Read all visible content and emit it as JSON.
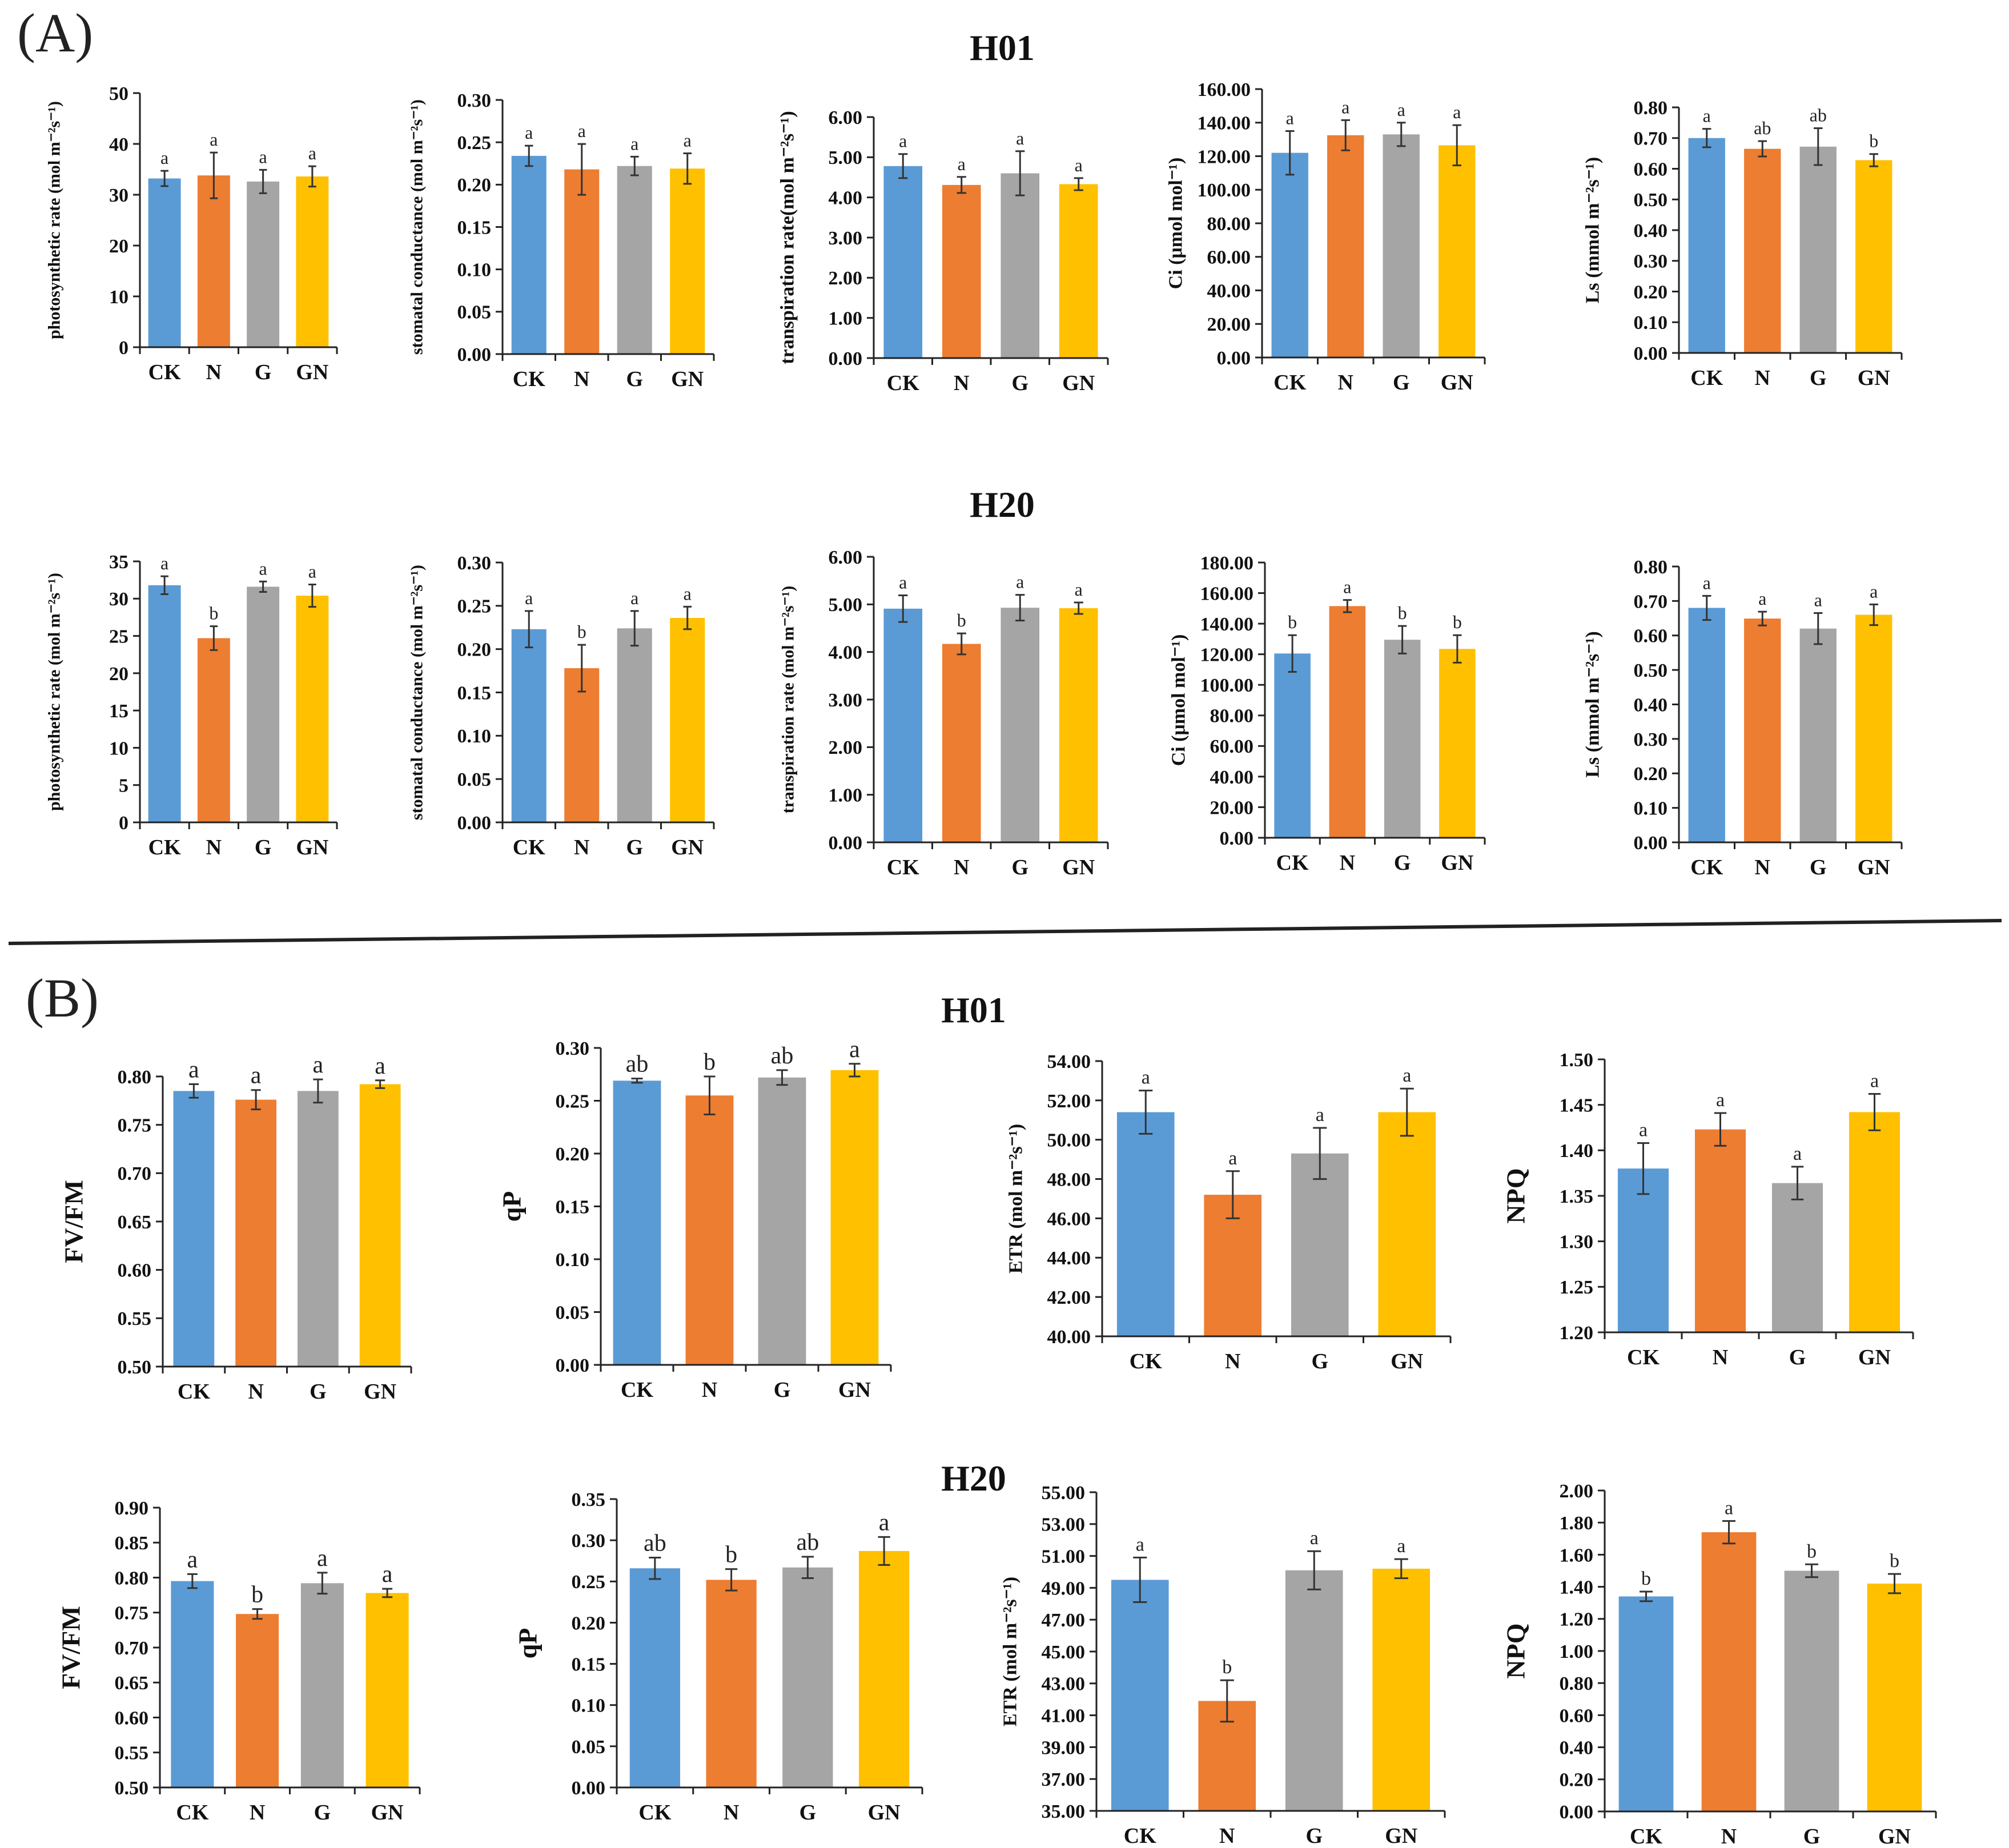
{
  "figure": {
    "panels": [
      {
        "label": "(A)"
      },
      {
        "label": "(B)"
      }
    ],
    "row_titles": [
      "H01",
      "H20",
      "H01",
      "H20"
    ],
    "colors": {
      "CK": "#5B9BD5",
      "N": "#ED7D31",
      "G": "#A5A5A5",
      "GN": "#FFC000",
      "axis": "#222222",
      "divider": "#222222"
    }
  },
  "chart_data": [
    {
      "type": "bar",
      "row": "A-H01",
      "categories": [
        "CK",
        "N",
        "G",
        "GN"
      ],
      "ylabel": "photosynthetic rate  (mol m⁻²s⁻¹)",
      "ylim": [
        0,
        50
      ],
      "yticks": [
        "0",
        "10",
        "20",
        "30",
        "40",
        "50"
      ],
      "values": [
        33.2,
        33.8,
        32.6,
        33.6
      ],
      "errors": [
        1.5,
        4.5,
        2.3,
        2.0
      ],
      "letters": [
        "a",
        "a",
        "a",
        "a"
      ]
    },
    {
      "type": "bar",
      "row": "A-H01",
      "categories": [
        "CK",
        "N",
        "G",
        "GN"
      ],
      "ylabel": "stomatal conductance  (mol m⁻²s⁻¹)",
      "ylim": [
        0,
        0.3
      ],
      "yticks": [
        "0.00",
        "0.05",
        "0.10",
        "0.15",
        "0.20",
        "0.25",
        "0.30"
      ],
      "values": [
        0.234,
        0.218,
        0.222,
        0.219
      ],
      "errors": [
        0.012,
        0.03,
        0.011,
        0.018
      ],
      "letters": [
        "a",
        "a",
        "a",
        "a"
      ]
    },
    {
      "type": "bar",
      "row": "A-H01",
      "categories": [
        "CK",
        "N",
        "G",
        "GN"
      ],
      "ylabel": "transpiration rate(mol m⁻²s⁻¹)",
      "ylim": [
        0,
        6
      ],
      "yticks": [
        "0.00",
        "1.00",
        "2.00",
        "3.00",
        "4.00",
        "5.00",
        "6.00"
      ],
      "values": [
        4.78,
        4.31,
        4.6,
        4.33
      ],
      "errors": [
        0.3,
        0.2,
        0.55,
        0.15
      ],
      "letters": [
        "a",
        "a",
        "a",
        "a"
      ]
    },
    {
      "type": "bar",
      "row": "A-H01",
      "categories": [
        "CK",
        "N",
        "G",
        "GN"
      ],
      "ylabel": "Ci (μmol mol⁻¹)",
      "ylim": [
        0,
        160
      ],
      "yticks": [
        "0.00",
        "20.00",
        "40.00",
        "60.00",
        "80.00",
        "100.00",
        "120.00",
        "140.00",
        "160.00"
      ],
      "values": [
        122,
        132.5,
        133,
        126.5
      ],
      "errors": [
        13,
        9,
        7,
        12
      ],
      "letters": [
        "a",
        "a",
        "a",
        "a"
      ]
    },
    {
      "type": "bar",
      "row": "A-H01",
      "categories": [
        "CK",
        "N",
        "G",
        "GN"
      ],
      "ylabel": "Ls (mmol m⁻²s⁻¹)",
      "ylim": [
        0,
        0.8
      ],
      "yticks": [
        "0.00",
        "0.10",
        "0.20",
        "0.30",
        "0.40",
        "0.50",
        "0.60",
        "0.70",
        "0.80"
      ],
      "values": [
        0.7,
        0.665,
        0.672,
        0.628
      ],
      "errors": [
        0.03,
        0.025,
        0.06,
        0.02
      ],
      "letters": [
        "a",
        "ab",
        "ab",
        "b"
      ]
    },
    {
      "type": "bar",
      "row": "A-H20",
      "categories": [
        "CK",
        "N",
        "G",
        "GN"
      ],
      "ylabel": "photosynthetic rate  (mol m⁻²s⁻¹)",
      "ylim": [
        0,
        35
      ],
      "yticks": [
        "0",
        "5",
        "10",
        "15",
        "20",
        "25",
        "30",
        "35"
      ],
      "values": [
        31.8,
        24.7,
        31.6,
        30.4
      ],
      "errors": [
        1.2,
        1.6,
        0.7,
        1.5
      ],
      "letters": [
        "a",
        "b",
        "a",
        "a"
      ]
    },
    {
      "type": "bar",
      "row": "A-H20",
      "categories": [
        "CK",
        "N",
        "G",
        "GN"
      ],
      "ylabel": "stomatal conductance  (mol m⁻²s⁻¹)",
      "ylim": [
        0,
        0.3
      ],
      "yticks": [
        "0.00",
        "0.05",
        "0.10",
        "0.15",
        "0.20",
        "0.25",
        "0.30"
      ],
      "values": [
        0.223,
        0.178,
        0.224,
        0.236
      ],
      "errors": [
        0.021,
        0.027,
        0.02,
        0.013
      ],
      "letters": [
        "a",
        "b",
        "a",
        "a"
      ]
    },
    {
      "type": "bar",
      "row": "A-H20",
      "categories": [
        "CK",
        "N",
        "G",
        "GN"
      ],
      "ylabel": "transpiration rate (mol m⁻²s⁻¹)",
      "ylim": [
        0,
        6
      ],
      "yticks": [
        "0.00",
        "1.00",
        "2.00",
        "3.00",
        "4.00",
        "5.00",
        "6.00"
      ],
      "values": [
        4.91,
        4.17,
        4.93,
        4.92
      ],
      "errors": [
        0.28,
        0.22,
        0.27,
        0.12
      ],
      "letters": [
        "a",
        "b",
        "a",
        "a"
      ]
    },
    {
      "type": "bar",
      "row": "A-H20",
      "categories": [
        "CK",
        "N",
        "G",
        "GN"
      ],
      "ylabel": "Ci (μmol mol⁻¹)",
      "ylim": [
        0,
        180
      ],
      "yticks": [
        "0.00",
        "20.00",
        "40.00",
        "60.00",
        "80.00",
        "100.00",
        "120.00",
        "140.00",
        "160.00",
        "180.00"
      ],
      "values": [
        120.5,
        151.5,
        129.5,
        123.5
      ],
      "errors": [
        12,
        4,
        9,
        9
      ],
      "letters": [
        "b",
        "a",
        "b",
        "b"
      ]
    },
    {
      "type": "bar",
      "row": "A-H20",
      "categories": [
        "CK",
        "N",
        "G",
        "GN"
      ],
      "ylabel": "Ls (mmol m⁻²s⁻¹)",
      "ylim": [
        0,
        0.8
      ],
      "yticks": [
        "0.00",
        "0.10",
        "0.20",
        "0.30",
        "0.40",
        "0.50",
        "0.60",
        "0.70",
        "0.80"
      ],
      "values": [
        0.68,
        0.649,
        0.62,
        0.66
      ],
      "errors": [
        0.035,
        0.02,
        0.045,
        0.03
      ],
      "letters": [
        "a",
        "a",
        "a",
        "a"
      ]
    },
    {
      "type": "bar",
      "row": "B-H01",
      "categories": [
        "CK",
        "N",
        "G",
        "GN"
      ],
      "ylabel": "FV/FM",
      "ylim": [
        0.5,
        0.8
      ],
      "yticks": [
        "0.50",
        "0.55",
        "0.60",
        "0.65",
        "0.70",
        "0.75",
        "0.80"
      ],
      "values": [
        0.785,
        0.776,
        0.785,
        0.792
      ],
      "errors": [
        0.007,
        0.01,
        0.012,
        0.004
      ],
      "letters": [
        "a",
        "a",
        "a",
        "a"
      ]
    },
    {
      "type": "bar",
      "row": "B-H01",
      "categories": [
        "CK",
        "N",
        "G",
        "GN"
      ],
      "ylabel": "qP",
      "ylim": [
        0,
        0.3
      ],
      "yticks": [
        "0.00",
        "0.05",
        "0.10",
        "0.15",
        "0.20",
        "0.25",
        "0.30"
      ],
      "values": [
        0.269,
        0.255,
        0.272,
        0.279
      ],
      "errors": [
        0.002,
        0.018,
        0.007,
        0.006
      ],
      "letters": [
        "ab",
        "b",
        "ab",
        "a"
      ]
    },
    {
      "type": "bar",
      "row": "B-H01",
      "categories": [
        "CK",
        "N",
        "G",
        "GN"
      ],
      "ylabel": "ETR  (mol m⁻²s⁻¹)",
      "ylim": [
        40,
        54
      ],
      "yticks": [
        "40.00",
        "42.00",
        "44.00",
        "46.00",
        "48.00",
        "50.00",
        "52.00",
        "54.00"
      ],
      "values": [
        51.4,
        47.2,
        49.3,
        51.4
      ],
      "errors": [
        1.1,
        1.2,
        1.3,
        1.2
      ],
      "letters": [
        "a",
        "a",
        "a",
        "a"
      ]
    },
    {
      "type": "bar",
      "row": "B-H01",
      "categories": [
        "CK",
        "N",
        "G",
        "GN"
      ],
      "ylabel": "NPQ",
      "ylim": [
        1.2,
        1.5
      ],
      "yticks": [
        "1.20",
        "1.25",
        "1.30",
        "1.35",
        "1.40",
        "1.45",
        "1.50"
      ],
      "values": [
        1.38,
        1.423,
        1.364,
        1.442
      ],
      "errors": [
        0.028,
        0.018,
        0.018,
        0.02
      ],
      "letters": [
        "a",
        "a",
        "a",
        "a"
      ]
    },
    {
      "type": "bar",
      "row": "B-H20",
      "categories": [
        "CK",
        "N",
        "G",
        "GN"
      ],
      "ylabel": "FV/FM",
      "ylim": [
        0.5,
        0.9
      ],
      "yticks": [
        "0.50",
        "0.55",
        "0.60",
        "0.65",
        "0.70",
        "0.75",
        "0.80",
        "0.85",
        "0.90"
      ],
      "values": [
        0.795,
        0.748,
        0.792,
        0.778
      ],
      "errors": [
        0.01,
        0.007,
        0.015,
        0.006
      ],
      "letters": [
        "a",
        "b",
        "a",
        "a"
      ]
    },
    {
      "type": "bar",
      "row": "B-H20",
      "categories": [
        "CK",
        "N",
        "G",
        "GN"
      ],
      "ylabel": "qP",
      "ylim": [
        0,
        0.35
      ],
      "yticks": [
        "0.00",
        "0.05",
        "0.10",
        "0.15",
        "0.20",
        "0.25",
        "0.30",
        "0.35"
      ],
      "values": [
        0.266,
        0.252,
        0.267,
        0.287
      ],
      "errors": [
        0.013,
        0.013,
        0.013,
        0.017
      ],
      "letters": [
        "ab",
        "b",
        "ab",
        "a"
      ]
    },
    {
      "type": "bar",
      "row": "B-H20",
      "categories": [
        "CK",
        "N",
        "G",
        "GN"
      ],
      "ylabel": "ETR  (mol m⁻²s⁻¹)",
      "ylim": [
        35,
        55
      ],
      "yticks": [
        "35.00",
        "37.00",
        "39.00",
        "41.00",
        "43.00",
        "45.00",
        "47.00",
        "49.00",
        "51.00",
        "53.00",
        "55.00"
      ],
      "values": [
        49.5,
        41.9,
        50.1,
        50.2
      ],
      "errors": [
        1.4,
        1.3,
        1.2,
        0.6
      ],
      "letters": [
        "a",
        "b",
        "a",
        "a"
      ]
    },
    {
      "type": "bar",
      "row": "B-H20",
      "categories": [
        "CK",
        "N",
        "G",
        "GN"
      ],
      "ylabel": "NPQ",
      "ylim": [
        0,
        2.0
      ],
      "yticks": [
        "0.00",
        "0.20",
        "0.40",
        "0.60",
        "0.80",
        "1.00",
        "1.20",
        "1.40",
        "1.60",
        "1.80",
        "2.00"
      ],
      "values": [
        1.34,
        1.74,
        1.5,
        1.42
      ],
      "errors": [
        0.03,
        0.07,
        0.04,
        0.06
      ],
      "letters": [
        "b",
        "a",
        "b",
        "b"
      ]
    }
  ]
}
